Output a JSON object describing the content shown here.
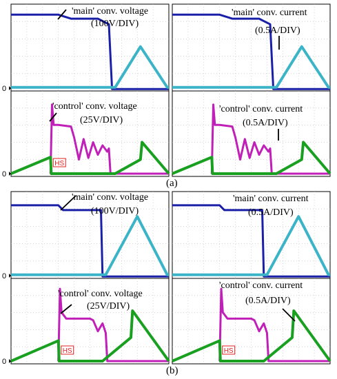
{
  "figure": {
    "caption_a": "(a)",
    "caption_b": "(b)"
  },
  "colors": {
    "main_voltage": "#1a1fa8",
    "main_current": "#3cb4c8",
    "control_voltage": "#c020b8",
    "control_current": "#1aa020",
    "hs_marker": "#e02020",
    "grid": "#bbbbbb"
  },
  "chart_data": [
    {
      "type": "line",
      "panel": "a-top-left",
      "annotation": "'main' conv. voltage (100V/DIV)",
      "zero_label": "0",
      "series": [
        {
          "name": "'main' conv. voltage",
          "color_key": "main_voltage",
          "x": [
            0,
            0.05,
            0.3,
            0.38,
            0.55,
            0.62,
            0.64,
            0.66,
            0.9,
            1.0
          ],
          "y": [
            4.6,
            4.6,
            4.6,
            4.35,
            4.35,
            4.0,
            -0.05,
            -0.05,
            -0.05,
            -0.05
          ]
        },
        {
          "name": "'main' conv. current",
          "color_key": "main_current",
          "x": [
            0,
            0.62,
            0.66,
            0.82,
            0.99,
            1.0
          ],
          "y": [
            0.05,
            0.05,
            0.05,
            2.6,
            0.05,
            0.05
          ]
        }
      ]
    },
    {
      "type": "line",
      "panel": "a-top-right",
      "annotation": "'main' conv. current (0.5A/DIV)",
      "zero_label": "",
      "series": [
        {
          "name": "'main' conv. voltage",
          "color_key": "main_voltage",
          "x": [
            0,
            0.05,
            0.3,
            0.38,
            0.55,
            0.62,
            0.64,
            0.66,
            0.9,
            1.0
          ],
          "y": [
            4.6,
            4.6,
            4.6,
            4.35,
            4.35,
            4.0,
            -0.05,
            -0.05,
            -0.05,
            -0.05
          ]
        },
        {
          "name": "'main' conv. current",
          "color_key": "main_current",
          "x": [
            0,
            0.62,
            0.66,
            0.82,
            0.99,
            1.0
          ],
          "y": [
            0.05,
            0.05,
            0.05,
            2.6,
            0.05,
            0.05
          ]
        }
      ]
    },
    {
      "type": "line",
      "panel": "a-bottom-left",
      "annotation": "'control' conv. voltage (25V/DIV)",
      "zero_label": "0",
      "hs_label": "HS",
      "series": [
        {
          "name": "'control' conv. voltage",
          "color_key": "control_voltage",
          "x": [
            0.25,
            0.26,
            0.27,
            0.3,
            0.38,
            0.4,
            0.43,
            0.46,
            0.49,
            0.52,
            0.55,
            0.58,
            0.61,
            0.62,
            0.63,
            1.0
          ],
          "y": [
            0,
            4.4,
            3.1,
            3.1,
            3.0,
            2.3,
            0.9,
            2.2,
            1.0,
            2.0,
            1.2,
            1.8,
            1.4,
            1.6,
            0,
            0
          ]
        },
        {
          "name": "'control' conv. current",
          "color_key": "control_current",
          "x": [
            0,
            0.25,
            0.255,
            0.62,
            0.66,
            0.82,
            0.83,
            1.0
          ],
          "y": [
            0,
            1.05,
            0,
            0,
            0,
            0.9,
            2.0,
            0
          ]
        }
      ]
    },
    {
      "type": "line",
      "panel": "a-bottom-right",
      "annotation": "'control' conv. current (0.5A/DIV)",
      "zero_label": "",
      "hs_label": "",
      "series": [
        {
          "name": "'control' conv. voltage",
          "color_key": "control_voltage",
          "x": [
            0.25,
            0.26,
            0.27,
            0.3,
            0.38,
            0.4,
            0.43,
            0.46,
            0.49,
            0.52,
            0.55,
            0.58,
            0.61,
            0.62,
            0.63,
            1.0
          ],
          "y": [
            0,
            4.4,
            3.1,
            3.1,
            3.0,
            2.3,
            0.9,
            2.2,
            1.0,
            2.0,
            1.2,
            1.8,
            1.4,
            1.6,
            0,
            0
          ]
        },
        {
          "name": "'control' conv. current",
          "color_key": "control_current",
          "x": [
            0,
            0.25,
            0.255,
            0.62,
            0.66,
            0.82,
            0.83,
            1.0
          ],
          "y": [
            0,
            1.05,
            0,
            0,
            0,
            0.9,
            2.0,
            0
          ]
        }
      ]
    },
    {
      "type": "line",
      "panel": "b-top-left",
      "annotation": "'main' conv. voltage (100V/DIV)",
      "zero_label": "0",
      "series": [
        {
          "name": "'main' conv. voltage",
          "color_key": "main_voltage",
          "x": [
            0,
            0.05,
            0.3,
            0.33,
            0.55,
            0.57,
            0.58,
            0.6,
            1.0
          ],
          "y": [
            4.4,
            4.4,
            4.4,
            4.1,
            4.1,
            4.1,
            -0.05,
            -0.05,
            -0.05
          ]
        },
        {
          "name": "'main' conv. current",
          "color_key": "main_current",
          "x": [
            0,
            0.57,
            0.6,
            0.8,
            0.99,
            1.0
          ],
          "y": [
            0.05,
            0.05,
            0.05,
            3.7,
            0.05,
            0.05
          ]
        }
      ]
    },
    {
      "type": "line",
      "panel": "b-top-right",
      "annotation": "'main' conv. current (0.5A/DIV)",
      "zero_label": "",
      "series": [
        {
          "name": "'main' conv. voltage",
          "color_key": "main_voltage",
          "x": [
            0,
            0.05,
            0.3,
            0.33,
            0.55,
            0.57,
            0.58,
            0.6,
            1.0
          ],
          "y": [
            4.4,
            4.4,
            4.4,
            4.1,
            4.1,
            4.1,
            -0.05,
            -0.05,
            -0.05
          ]
        },
        {
          "name": "'main' conv. current",
          "color_key": "main_current",
          "x": [
            0,
            0.57,
            0.6,
            0.8,
            0.99,
            1.0
          ],
          "y": [
            0.05,
            0.05,
            0.05,
            3.7,
            0.05,
            0.05
          ]
        }
      ]
    },
    {
      "type": "line",
      "panel": "b-bottom-left",
      "annotation": "'control' conv. voltage (25V/DIV)",
      "zero_label": "0",
      "hs_label": "HS",
      "series": [
        {
          "name": "'control' conv. voltage",
          "color_key": "control_voltage",
          "x": [
            0.3,
            0.31,
            0.32,
            0.35,
            0.5,
            0.52,
            0.55,
            0.58,
            0.6,
            0.61,
            1.0
          ],
          "y": [
            0,
            4.6,
            3.1,
            2.7,
            2.7,
            2.6,
            1.9,
            2.4,
            1.8,
            0,
            0
          ]
        },
        {
          "name": "'control' conv. current",
          "color_key": "control_current",
          "x": [
            0,
            0.3,
            0.305,
            0.55,
            0.58,
            0.76,
            0.77,
            1.0
          ],
          "y": [
            0,
            1.3,
            0,
            0,
            0,
            1.5,
            3.2,
            0
          ]
        }
      ]
    },
    {
      "type": "line",
      "panel": "b-bottom-right",
      "annotation": "'control' conv. current (0.5A/DIV)",
      "zero_label": "",
      "hs_label": "HS",
      "series": [
        {
          "name": "'control' conv. voltage",
          "color_key": "control_voltage",
          "x": [
            0.3,
            0.31,
            0.32,
            0.35,
            0.5,
            0.52,
            0.55,
            0.58,
            0.6,
            0.61,
            1.0
          ],
          "y": [
            0,
            4.6,
            3.1,
            2.7,
            2.7,
            2.6,
            1.9,
            2.4,
            1.8,
            0,
            0
          ]
        },
        {
          "name": "'control' conv. current",
          "color_key": "control_current",
          "x": [
            0,
            0.3,
            0.305,
            0.55,
            0.58,
            0.76,
            0.77,
            1.0
          ],
          "y": [
            0,
            1.3,
            0,
            0,
            0,
            1.5,
            3.2,
            0
          ]
        }
      ]
    }
  ],
  "annotations": {
    "a_main_voltage_l1": "'main' conv. voltage",
    "a_main_voltage_l2": "(100V/DIV)",
    "a_main_current_l1": "'main' conv. current",
    "a_main_current_l2": "(0.5A/DIV)",
    "a_control_voltage_l1": "'control' conv. voltage",
    "a_control_voltage_l2": "(25V/DIV)",
    "a_control_current_l1": "'control' conv. current",
    "a_control_current_l2": "(0.5A/DIV)",
    "b_main_voltage_l1": "'main' conv. voltage",
    "b_main_voltage_l2": "(100V/DIV)",
    "b_main_current_l1": "'main' conv. current",
    "b_main_current_l2": "(0.5A/DIV)",
    "b_control_voltage_l1": "'control' conv. voltage",
    "b_control_voltage_l2": "(25V/DIV)",
    "b_control_current_l1": "'control' conv. current",
    "b_control_current_l2": "(0.5A/DIV)",
    "zero": "0",
    "hs": "HS"
  }
}
